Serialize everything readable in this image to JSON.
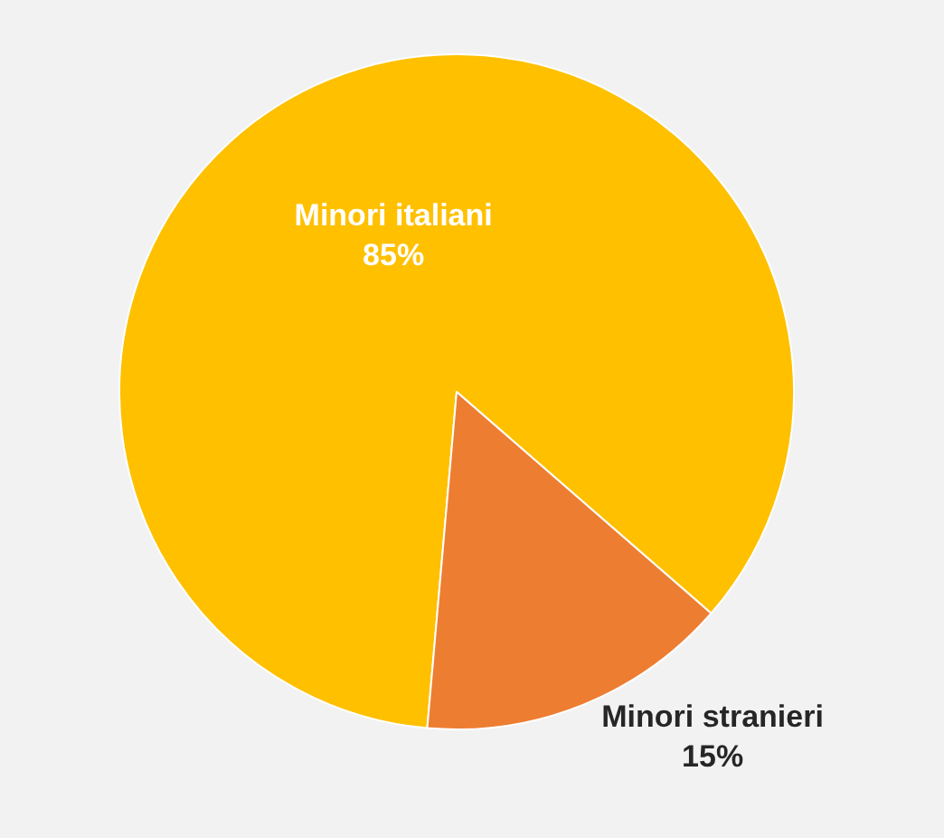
{
  "chart_data": {
    "type": "pie",
    "categories": [
      "Minori italiani",
      "Minori stranieri"
    ],
    "values": [
      85,
      15
    ],
    "value_labels": [
      "85%",
      "15%"
    ],
    "colors": [
      "#ffc000",
      "#ed7d31"
    ],
    "legend": false
  }
}
